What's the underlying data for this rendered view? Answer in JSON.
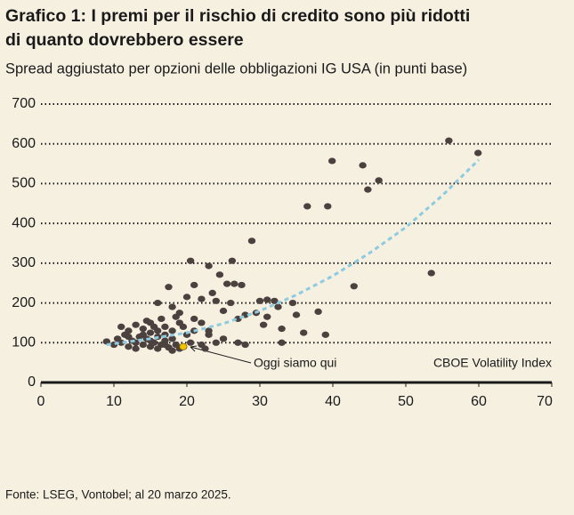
{
  "chart_data": {
    "type": "scatter",
    "title": [
      "Grafico 1: I premi per il rischio di credito sono più ridotti",
      "di quanto dovrebbero essere"
    ],
    "subtitle": "Spread aggiustato per opzioni delle obbligazioni IG USA (in punti base)",
    "x_label": "CBOE Volatility Index",
    "annotation": "Oggi siamo qui",
    "source": "Fonte: LSEG, Vontobel; al 20 marzo 2025.",
    "xlim": [
      0,
      70
    ],
    "xticks": [
      0,
      10,
      20,
      30,
      40,
      50,
      60,
      70
    ],
    "ylim": [
      0,
      700
    ],
    "yticks": [
      0,
      100,
      200,
      300,
      400,
      500,
      600,
      700
    ],
    "grid": true,
    "series": [
      {
        "type": "scatter",
        "color": "#4b4240",
        "x": [
          55.9,
          59.9,
          39.9,
          44.1,
          46.3,
          44.8,
          36.5,
          39.3,
          28.9,
          53.5,
          42.9,
          20.5,
          23,
          26.2,
          24.5,
          25.5,
          26.5,
          27.5,
          21,
          17.5,
          23.5,
          20,
          22,
          24,
          26,
          30,
          31,
          32,
          34.5,
          32.5,
          29.5,
          28,
          25,
          27,
          31,
          35,
          38,
          30.5,
          33,
          36,
          39,
          33,
          27,
          28,
          25,
          23,
          22,
          21,
          19,
          18,
          16,
          15,
          19.5,
          18.5,
          17,
          9,
          10,
          10.5,
          11,
          11.5,
          12,
          12,
          12.5,
          13,
          13,
          13.5,
          14,
          14,
          14.5,
          14.5,
          15,
          15,
          15.5,
          15.5,
          16,
          16,
          16.5,
          16.5,
          17,
          17,
          17.5,
          18,
          18,
          18.5,
          19,
          19,
          20,
          20.5,
          21,
          22,
          23,
          24,
          22.5,
          11,
          13,
          15,
          17,
          18,
          16,
          14,
          12
        ],
        "values": [
          608,
          577,
          557,
          546,
          508,
          485,
          443,
          443,
          356,
          275,
          242,
          306,
          293,
          306,
          271,
          248,
          248,
          245,
          245,
          240,
          225,
          215,
          210,
          205,
          200,
          205,
          208,
          205,
          200,
          190,
          175,
          170,
          180,
          160,
          165,
          170,
          178,
          145,
          135,
          125,
          120,
          100,
          100,
          95,
          110,
          130,
          150,
          160,
          175,
          190,
          200,
          150,
          140,
          165,
          120,
          103,
          95,
          110,
          100,
          120,
          90,
          130,
          105,
          145,
          85,
          115,
          95,
          135,
          155,
          110,
          90,
          125,
          100,
          140,
          85,
          115,
          160,
          95,
          105,
          140,
          88,
          110,
          130,
          95,
          150,
          85,
          120,
          100,
          130,
          95,
          120,
          100,
          85,
          140,
          100,
          105,
          95,
          80,
          130,
          120,
          115
        ]
      },
      {
        "type": "scatter",
        "color": "#f2c200",
        "x": [
          19.5
        ],
        "values": [
          90
        ]
      },
      {
        "type": "line",
        "color": "#8ccbe0",
        "x": [
          9,
          15,
          20,
          25,
          30,
          35,
          40,
          45,
          50,
          55,
          60
        ],
        "values": [
          95,
          110,
          125,
          148,
          180,
          220,
          268,
          325,
          390,
          470,
          560
        ]
      }
    ]
  }
}
